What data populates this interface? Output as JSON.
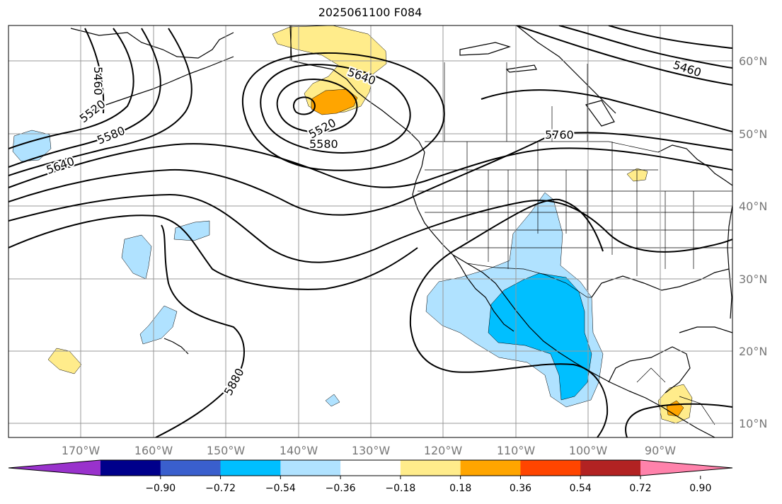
{
  "title": "2025061100 F084",
  "lat_labels": [
    "60°N",
    "50°N",
    "40°N",
    "30°N",
    "20°N",
    "10°N"
  ],
  "lon_labels": [
    "170°W",
    "160°W",
    "150°W",
    "140°W",
    "130°W",
    "120°W",
    "110°W",
    "100°W",
    "90°W"
  ],
  "contour_labels": [
    "5460",
    "5520",
    "5580",
    "5640",
    "5640",
    "5520",
    "5580",
    "5760",
    "5460",
    "5880"
  ],
  "colorbar": {
    "ticks": [
      "−0.90",
      "−0.72",
      "−0.54",
      "−0.36",
      "−0.18",
      "0.18",
      "0.36",
      "0.54",
      "0.72",
      "0.90"
    ],
    "colors": [
      "#9932cc",
      "#00008b",
      "#3a5fcd",
      "#00bfff",
      "#b0e2ff",
      "#ffffff",
      "#ffec8b",
      "#ffa500",
      "#ff4500",
      "#b22222",
      "#ff82ab"
    ]
  },
  "colors": {
    "grid": "#999999",
    "coast": "#000000",
    "contour": "#000000",
    "light_blue": "#b0e2ff",
    "blue": "#00bfff",
    "yellow": "#ffec8b",
    "orange": "#ffa500"
  }
}
